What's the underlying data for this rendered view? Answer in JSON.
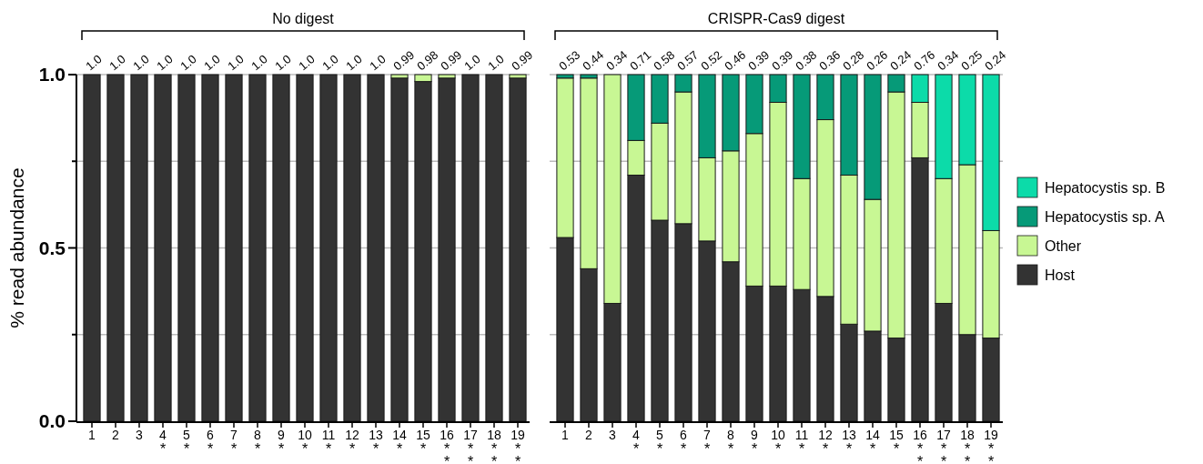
{
  "chart_data": [
    {
      "type": "bar",
      "stacked": true,
      "title": "No digest",
      "ylabel": "% read abundance",
      "categories": [
        "1",
        "2",
        "3",
        "4\n*",
        "5\n*",
        "6\n*",
        "7\n*",
        "8\n*",
        "9\n*",
        "10\n*",
        "11\n*",
        "12\n*",
        "13\n*",
        "14\n*",
        "15\n*",
        "16\n*\n*",
        "17\n*\n*",
        "18\n*\n*",
        "19\n*\n*"
      ],
      "ylim": [
        0,
        1
      ],
      "yticks": [
        {
          "value": 0,
          "label": "0.0"
        },
        {
          "value": 0.25,
          "label": null
        },
        {
          "value": 0.5,
          "label": "0.5"
        },
        {
          "value": 0.75,
          "label": null
        },
        {
          "value": 1,
          "label": "1.0"
        }
      ],
      "grid": "y",
      "legend": false,
      "series": [
        {
          "color": "#333333",
          "values": [
            1,
            1,
            1,
            1,
            1,
            1,
            1,
            1,
            1,
            1,
            1,
            1,
            1,
            0.99,
            0.98,
            0.99,
            1,
            1,
            0.99
          ]
        },
        {
          "color": "#c8f794",
          "values": [
            0,
            0,
            0,
            0,
            0,
            0,
            0,
            0,
            0,
            0,
            0,
            0,
            0,
            0.01,
            0.02,
            0.01,
            0,
            0,
            0.01
          ]
        }
      ],
      "annotations": [
        {
          "text": "1.0",
          "x": "1",
          "y": 1
        },
        {
          "text": "1.0",
          "x": "2",
          "y": 1
        },
        {
          "text": "1.0",
          "x": "3",
          "y": 1
        },
        {
          "text": "1.0",
          "x": "4\n*",
          "y": 1
        },
        {
          "text": "1.0",
          "x": "5\n*",
          "y": 1
        },
        {
          "text": "1.0",
          "x": "6\n*",
          "y": 1
        },
        {
          "text": "1.0",
          "x": "7\n*",
          "y": 1
        },
        {
          "text": "1.0",
          "x": "8\n*",
          "y": 1
        },
        {
          "text": "1.0",
          "x": "9\n*",
          "y": 1
        },
        {
          "text": "1.0",
          "x": "10\n*",
          "y": 1
        },
        {
          "text": "1.0",
          "x": "11\n*",
          "y": 1
        },
        {
          "text": "1.0",
          "x": "12\n*",
          "y": 1
        },
        {
          "text": "1.0",
          "x": "13\n*",
          "y": 1
        },
        {
          "text": "0.99",
          "x": "14\n*",
          "y": 1
        },
        {
          "text": "0.98",
          "x": "15\n*",
          "y": 1
        },
        {
          "text": "0.99",
          "x": "16\n*\n*",
          "y": 1
        },
        {
          "text": "1.0",
          "x": "17\n*\n*",
          "y": 1
        },
        {
          "text": "1.0",
          "x": "18\n*\n*",
          "y": 1
        },
        {
          "text": "0.99",
          "x": "19\n*\n*",
          "y": 1
        }
      ]
    },
    {
      "type": "bar",
      "stacked": true,
      "title": "CRISPR-Cas9 digest",
      "categories": [
        "1",
        "2",
        "3",
        "4\n*",
        "5\n*",
        "6\n*",
        "7\n*",
        "8\n*",
        "9\n*",
        "10\n*",
        "11\n*",
        "12\n*",
        "13\n*",
        "14\n*",
        "15\n*",
        "16\n*\n*",
        "17\n*\n*",
        "18\n*\n*",
        "19\n*\n*"
      ],
      "ylim": [
        0,
        1
      ],
      "yticks": [
        0,
        0.25,
        0.5,
        0.75,
        1
      ],
      "grid": "y",
      "tick_labels": "x",
      "legend": "right",
      "series": [
        {
          "name": "Host",
          "color": "#333333",
          "values": [
            0.53,
            0.44,
            0.34,
            0.71,
            0.58,
            0.57,
            0.52,
            0.46,
            0.39,
            0.39,
            0.38,
            0.36,
            0.28,
            0.26,
            0.24,
            0.76,
            0.34,
            0.25,
            0.24
          ]
        },
        {
          "name": "Other",
          "color": "#c8f794",
          "values": [
            0.46,
            0.55,
            0.66,
            0.1,
            0.28,
            0.38,
            0.24,
            0.32,
            0.44,
            0.53,
            0.32,
            0.51,
            0.43,
            0.38,
            0.71,
            0.16,
            0.36,
            0.49,
            0.31
          ]
        },
        {
          "name": "Hepatocystis sp. A",
          "color": "#069a78",
          "values": [
            0.01,
            0.01,
            0,
            0.19,
            0.14,
            0.05,
            0.24,
            0.22,
            0.17,
            0.08,
            0.3,
            0.13,
            0.29,
            0.36,
            0.05,
            0,
            0,
            0,
            0
          ]
        },
        {
          "name": "Hepatocystis sp. B",
          "color": "#0cdba9",
          "values": [
            0,
            0,
            0,
            0,
            0,
            0,
            0,
            0,
            0,
            0,
            0,
            0,
            0,
            0,
            0,
            0.08,
            0.3,
            0.26,
            0.45
          ]
        }
      ],
      "annotations": [
        {
          "text": "0.53",
          "x": "1",
          "y": 1
        },
        {
          "text": "0.44",
          "x": "2",
          "y": 1
        },
        {
          "text": "0.34",
          "x": "3",
          "y": 1
        },
        {
          "text": "0.71",
          "x": "4\n*",
          "y": 1
        },
        {
          "text": "0.58",
          "x": "5\n*",
          "y": 1
        },
        {
          "text": "0.57",
          "x": "6\n*",
          "y": 1
        },
        {
          "text": "0.52",
          "x": "7\n*",
          "y": 1
        },
        {
          "text": "0.46",
          "x": "8\n*",
          "y": 1
        },
        {
          "text": "0.39",
          "x": "9\n*",
          "y": 1
        },
        {
          "text": "0.39",
          "x": "10\n*",
          "y": 1
        },
        {
          "text": "0.38",
          "x": "11\n*",
          "y": 1
        },
        {
          "text": "0.36",
          "x": "12\n*",
          "y": 1
        },
        {
          "text": "0.28",
          "x": "13\n*",
          "y": 1
        },
        {
          "text": "0.26",
          "x": "14\n*",
          "y": 1
        },
        {
          "text": "0.24",
          "x": "15\n*",
          "y": 1
        },
        {
          "text": "0.76",
          "x": "16\n*\n*",
          "y": 1
        },
        {
          "text": "0.34",
          "x": "17\n*\n*",
          "y": 1
        },
        {
          "text": "0.25",
          "x": "18\n*\n*",
          "y": 1
        },
        {
          "text": "0.24",
          "x": "19\n*\n*",
          "y": 1
        }
      ]
    }
  ]
}
